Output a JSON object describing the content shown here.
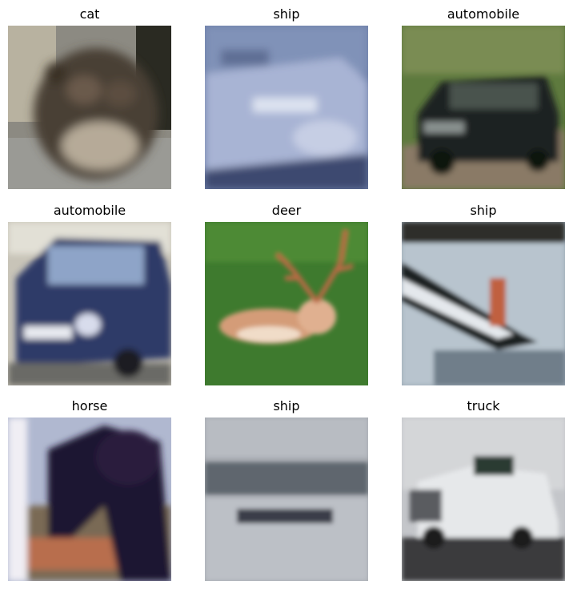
{
  "grid": {
    "panels": [
      {
        "label": "cat",
        "subject": "cat"
      },
      {
        "label": "ship",
        "subject": "ship"
      },
      {
        "label": "automobile",
        "subject": "automobile"
      },
      {
        "label": "automobile",
        "subject": "automobile"
      },
      {
        "label": "deer",
        "subject": "deer"
      },
      {
        "label": "ship",
        "subject": "ship"
      },
      {
        "label": "horse",
        "subject": "horse"
      },
      {
        "label": "ship",
        "subject": "ship"
      },
      {
        "label": "truck",
        "subject": "truck"
      }
    ]
  }
}
